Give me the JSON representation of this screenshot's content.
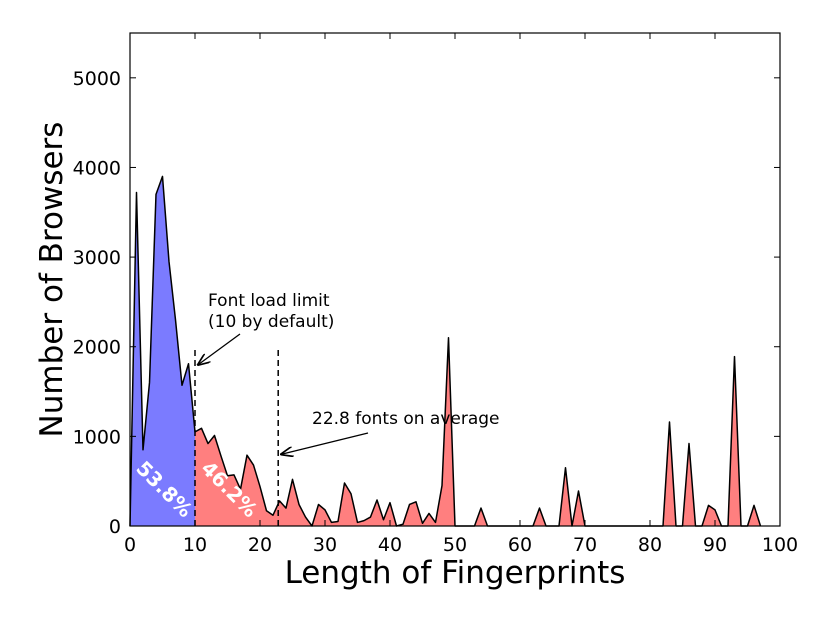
{
  "chart_data": {
    "type": "area",
    "xlabel": "Length of Fingerprints",
    "ylabel": "Number of Browsers",
    "xlim": [
      0,
      100
    ],
    "ylim": [
      0,
      5500
    ],
    "xticks": [
      0,
      10,
      20,
      30,
      40,
      50,
      60,
      70,
      80,
      90,
      100
    ],
    "yticks": [
      0,
      1000,
      2000,
      3000,
      4000,
      5000
    ],
    "grid": false,
    "x": [
      0,
      1,
      2,
      3,
      4,
      5,
      6,
      7,
      8,
      9,
      10,
      11,
      12,
      13,
      14,
      15,
      16,
      17,
      18,
      19,
      20,
      21,
      22,
      23,
      24,
      25,
      26,
      27,
      28,
      29,
      30,
      31,
      32,
      33,
      34,
      35,
      36,
      37,
      38,
      39,
      40,
      41,
      42,
      43,
      44,
      45,
      46,
      47,
      48,
      49,
      50,
      51,
      52,
      53,
      54,
      55,
      56,
      57,
      58,
      59,
      60,
      61,
      62,
      63,
      64,
      65,
      66,
      67,
      68,
      69,
      70,
      71,
      72,
      73,
      74,
      75,
      76,
      77,
      78,
      79,
      80,
      81,
      82,
      83,
      84,
      85,
      86,
      87,
      88,
      89,
      90,
      91,
      92,
      93,
      94,
      95,
      96,
      97
    ],
    "y": [
      0,
      3720,
      850,
      1600,
      3700,
      3900,
      2950,
      2300,
      1570,
      1810,
      1050,
      1090,
      920,
      1010,
      780,
      560,
      570,
      410,
      790,
      680,
      440,
      170,
      120,
      280,
      200,
      520,
      240,
      100,
      0,
      240,
      180,
      40,
      50,
      480,
      360,
      40,
      60,
      100,
      290,
      70,
      260,
      0,
      20,
      240,
      270,
      30,
      140,
      40,
      450,
      2100,
      0,
      0,
      0,
      0,
      200,
      0,
      0,
      0,
      0,
      0,
      0,
      0,
      0,
      200,
      0,
      0,
      0,
      650,
      0,
      390,
      0,
      0,
      0,
      0,
      0,
      0,
      0,
      0,
      0,
      0,
      0,
      0,
      0,
      1160,
      0,
      0,
      920,
      0,
      0,
      230,
      180,
      0,
      0,
      1890,
      0,
      0,
      230,
      0
    ],
    "series": [
      {
        "color": "#7b7bff",
        "x_range": [
          0,
          10
        ]
      },
      {
        "color": "#ff7f7f",
        "x_range": [
          10,
          97
        ]
      }
    ],
    "annotations": [
      {
        "text": "53.8%",
        "x": 5
      },
      {
        "text": "46.2%",
        "x": 15
      }
    ],
    "reference_lines": [
      {
        "x": 10,
        "y_top": 2000,
        "style": "dashed"
      },
      {
        "x": 22.8,
        "y_top": 2000,
        "style": "dashed"
      }
    ],
    "callouts": [
      {
        "lines": [
          "Font load limit",
          "(10 by default)"
        ],
        "arrow_to": [
          10.5,
          1800
        ]
      },
      {
        "lines": [
          "22.8 fonts on average"
        ],
        "arrow_to": [
          23.3,
          800
        ]
      }
    ]
  }
}
